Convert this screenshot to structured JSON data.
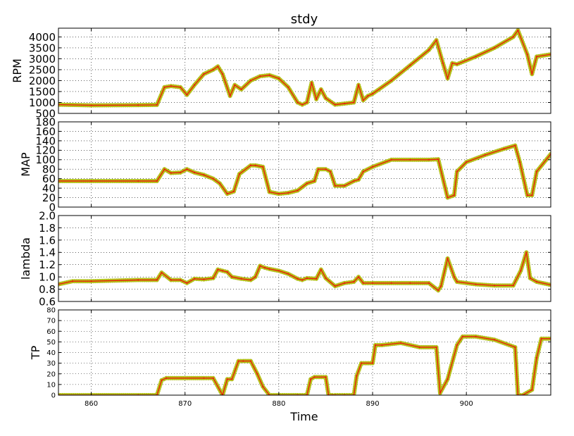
{
  "chart_data": {
    "type": "line",
    "title": "stdy",
    "xlabel": "Time",
    "xlim": [
      856.5,
      909
    ],
    "x_ticks": [
      860,
      870,
      880,
      890,
      900
    ],
    "grid": true,
    "colors": {
      "line": "#e8200c",
      "marker": "#b9c51a",
      "marker_edge": "#a9b510"
    },
    "panels": [
      {
        "ylabel": "RPM",
        "ylim": [
          500,
          4400
        ],
        "y_ticks": [
          500,
          1000,
          1500,
          2000,
          2500,
          3000,
          3500,
          4000
        ],
        "x": [
          856.5,
          860,
          865,
          867,
          867.8,
          868.5,
          869.5,
          870.2,
          871,
          872,
          873,
          873.5,
          874,
          874.8,
          875.3,
          876,
          877,
          878,
          879,
          880,
          881,
          882,
          882.5,
          883,
          883.5,
          884,
          884.5,
          885,
          886,
          887,
          888,
          888.5,
          889,
          889.5,
          890,
          892,
          894,
          896,
          896.8,
          897.5,
          898,
          898.5,
          899,
          901,
          903,
          905,
          905.5,
          906.5,
          907,
          907.5,
          909
        ],
        "values": [
          900,
          870,
          880,
          890,
          1700,
          1750,
          1700,
          1350,
          1800,
          2300,
          2500,
          2650,
          2300,
          1300,
          1800,
          1600,
          2000,
          2200,
          2250,
          2100,
          1700,
          1000,
          900,
          1000,
          1900,
          1150,
          1600,
          1200,
          900,
          950,
          1000,
          1800,
          1100,
          1300,
          1400,
          2000,
          2700,
          3400,
          3850,
          2800,
          2100,
          2800,
          2750,
          3100,
          3500,
          4000,
          4300,
          3200,
          2300,
          3100,
          3200
        ]
      },
      {
        "ylabel": "MAP",
        "ylim": [
          0,
          180
        ],
        "y_ticks": [
          0,
          20,
          40,
          60,
          80,
          100,
          120,
          140,
          160,
          180
        ],
        "x": [
          856.5,
          860,
          865,
          867,
          867.8,
          868.5,
          869.5,
          870.2,
          871,
          872,
          873,
          873.7,
          874.5,
          875.2,
          875.8,
          877,
          877.5,
          878.3,
          879,
          880,
          881,
          882,
          883,
          883.8,
          884.2,
          885,
          885.5,
          886,
          887,
          888,
          888.5,
          889,
          890,
          892,
          894,
          896,
          897,
          898,
          898.7,
          899,
          900,
          902,
          904,
          905.2,
          905.7,
          906.5,
          907,
          907.5,
          909
        ],
        "values": [
          55,
          55,
          55,
          55,
          80,
          72,
          73,
          80,
          73,
          68,
          60,
          50,
          28,
          33,
          70,
          88,
          88,
          85,
          32,
          28,
          30,
          35,
          50,
          55,
          80,
          80,
          75,
          45,
          45,
          55,
          58,
          75,
          85,
          100,
          100,
          100,
          101,
          20,
          25,
          75,
          95,
          110,
          123,
          130,
          95,
          25,
          25,
          75,
          112
        ]
      },
      {
        "ylabel": "lambda",
        "ylim": [
          0.6,
          2.0
        ],
        "y_ticks": [
          0.6,
          0.8,
          1.0,
          1.2,
          1.4,
          1.6,
          1.8,
          2.0
        ],
        "x": [
          856.5,
          858,
          860,
          865,
          867,
          867.5,
          868.5,
          869.5,
          870.2,
          871,
          872,
          873,
          873.5,
          874,
          874.5,
          875,
          876,
          877,
          877.5,
          878,
          878.5,
          879,
          880,
          881,
          882,
          882.5,
          883,
          884,
          884.5,
          885,
          886,
          887,
          888,
          888.5,
          889,
          890,
          892,
          894,
          896,
          897,
          897.3,
          898,
          898.7,
          899,
          901,
          903,
          905,
          905.8,
          906.4,
          906.8,
          907.5,
          909
        ],
        "values": [
          0.88,
          0.93,
          0.93,
          0.95,
          0.95,
          1.07,
          0.95,
          0.95,
          0.9,
          0.97,
          0.96,
          0.98,
          1.12,
          1.1,
          1.08,
          1.0,
          0.97,
          0.95,
          1.0,
          1.18,
          1.15,
          1.13,
          1.1,
          1.05,
          0.97,
          0.95,
          0.98,
          0.97,
          1.12,
          0.98,
          0.85,
          0.9,
          0.92,
          1.0,
          0.9,
          0.9,
          0.9,
          0.9,
          0.9,
          0.78,
          0.85,
          1.3,
          1.0,
          0.92,
          0.88,
          0.86,
          0.86,
          1.1,
          1.4,
          0.98,
          0.92,
          0.87
        ]
      },
      {
        "ylabel": "TP",
        "ylim": [
          0,
          80
        ],
        "y_ticks": [
          0,
          10,
          20,
          30,
          40,
          50,
          60,
          70,
          80
        ],
        "x": [
          856.5,
          865,
          867,
          867.5,
          868,
          872,
          873,
          874,
          874.5,
          875,
          875.7,
          876.2,
          877,
          877.7,
          878.3,
          879,
          882,
          883,
          883.4,
          883.8,
          885,
          885.3,
          885.7,
          886,
          887,
          888,
          888.3,
          888.8,
          890,
          890.3,
          891,
          893,
          895,
          896.8,
          897.2,
          898,
          899,
          899.6,
          901,
          903,
          905.2,
          905.5,
          906,
          907,
          907.5,
          908,
          909
        ],
        "values": [
          0,
          0,
          0,
          14,
          16,
          16,
          16,
          0,
          15,
          15,
          32,
          32,
          32,
          20,
          8,
          0,
          0,
          0,
          15,
          17,
          17,
          0,
          0,
          0,
          0,
          0,
          18,
          30,
          30,
          47,
          47,
          49,
          45,
          45,
          2,
          15,
          47,
          55,
          55,
          52,
          45,
          0,
          0,
          5,
          35,
          53,
          53
        ]
      }
    ]
  }
}
